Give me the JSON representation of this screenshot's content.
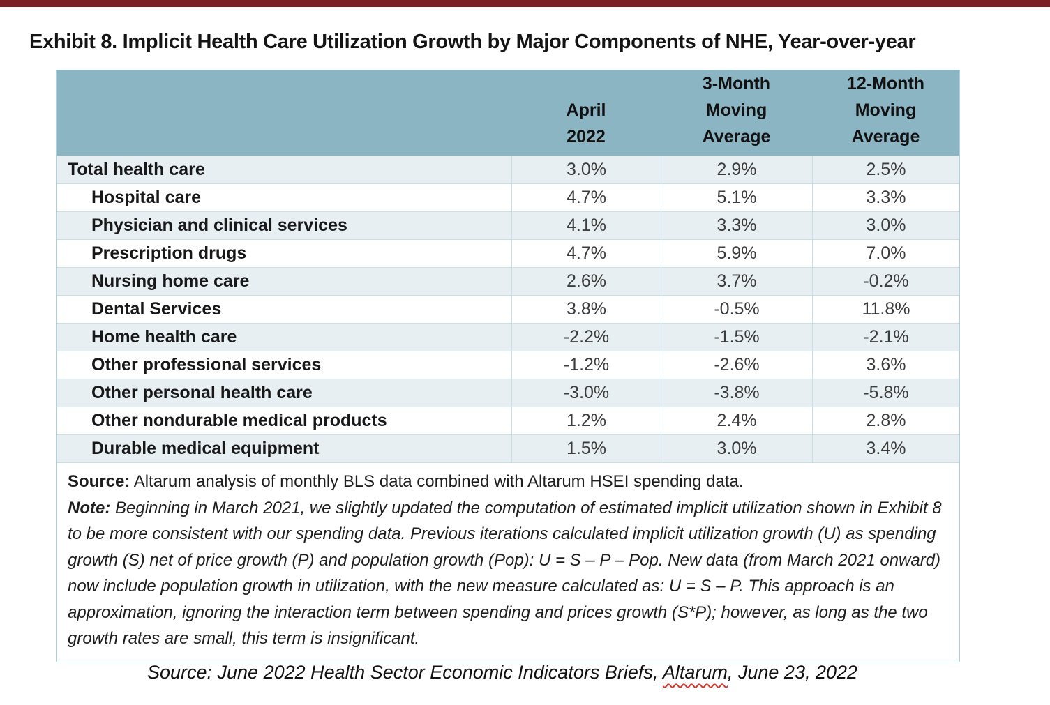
{
  "page": {
    "title": "Exhibit 8. Implicit Health Care Utilization Growth by Major Components of NHE, Year-over-year"
  },
  "colors": {
    "top_bar": "#7b2125",
    "header_bg": "#8cb5c4",
    "row_alt_bg": "#e7eff3",
    "row_bg": "#ffffff",
    "grid_line": "#c9dee6",
    "outer_border": "#aed2dc",
    "squiggle_red": "#cd3a31"
  },
  "table": {
    "columns": [
      "",
      "April\n2022",
      "3-Month\nMoving\nAverage",
      "12-Month\nMoving\nAverage"
    ],
    "rows": [
      {
        "label": "Total health care",
        "values": [
          "3.0%",
          "2.9%",
          "2.5%"
        ]
      },
      {
        "label": "Hospital care",
        "values": [
          "4.7%",
          "5.1%",
          "3.3%"
        ]
      },
      {
        "label": "Physician and clinical services",
        "values": [
          "4.1%",
          "3.3%",
          "3.0%"
        ]
      },
      {
        "label": "Prescription drugs",
        "values": [
          "4.7%",
          "5.9%",
          "7.0%"
        ]
      },
      {
        "label": "Nursing home care",
        "values": [
          "2.6%",
          "3.7%",
          "-0.2%"
        ]
      },
      {
        "label": "Dental Services",
        "values": [
          "3.8%",
          "-0.5%",
          "11.8%"
        ]
      },
      {
        "label": "Home health care",
        "values": [
          "-2.2%",
          "-1.5%",
          "-2.1%"
        ]
      },
      {
        "label": "Other professional services",
        "values": [
          "-1.2%",
          "-2.6%",
          "3.6%"
        ]
      },
      {
        "label": "Other personal health care",
        "values": [
          "-3.0%",
          "-3.8%",
          "-5.8%"
        ]
      },
      {
        "label": "Other nondurable medical products",
        "values": [
          "1.2%",
          "2.4%",
          "2.8%"
        ]
      },
      {
        "label": "Durable medical equipment",
        "values": [
          "1.5%",
          "3.0%",
          "3.4%"
        ]
      }
    ]
  },
  "notes": {
    "source_label": "Source:",
    "source_text": " Altarum analysis of monthly BLS data combined with Altarum HSEI spending data.",
    "note_label": "Note:",
    "note_text": " Beginning in March 2021, we slightly updated the computation of estimated implicit utilization shown in Exhibit 8 to be more consistent with our spending data. Previous iterations calculated implicit utilization growth (U) as spending growth (S) net of price growth (P) and population growth (Pop): U = S – P – Pop. New data (from March 2021 onward) now include population growth in utilization, with the new measure calculated as: U = S – P. This approach is an approximation, ignoring the interaction term between spending and prices growth (S*P); however, as long as the two growth rates are small, this term is insignificant."
  },
  "footer": {
    "prefix": "Source: June 2022 Health Sector Economic Indicators Briefs, ",
    "link": "Altarum",
    "suffix": ", June 23, 2022"
  }
}
